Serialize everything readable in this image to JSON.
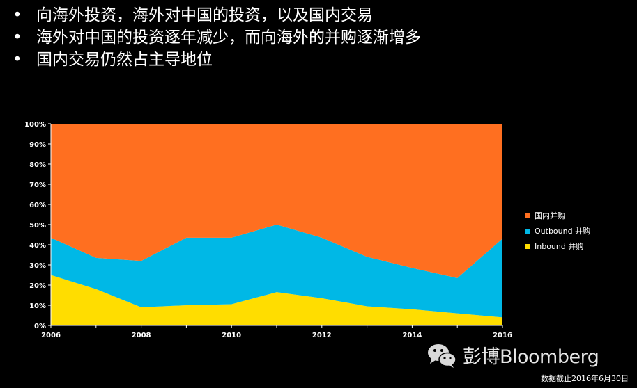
{
  "bullets": [
    "向海外投资，海外对中国的投资，以及国内交易",
    "海外对中国的投资逐年减少，而向海外的并购逐渐增多",
    "国内交易仍然占主导地位"
  ],
  "bullet_symbol": "•",
  "watermark": {
    "text": "彭博Bloomberg",
    "icon": "wechat-icon"
  },
  "footnote": "数据截止2016年6月30日",
  "colors": {
    "inbound": "#ffdd00",
    "outbound": "#00b8e6",
    "domestic": "#ff6f20",
    "plot_bg": "#ffffff"
  },
  "chart_data": {
    "type": "area",
    "stacked": true,
    "percent": true,
    "x": [
      2006,
      2007,
      2008,
      2009,
      2010,
      2011,
      2012,
      2013,
      2014,
      2015,
      2016
    ],
    "x_ticks": [
      "2006",
      "2008",
      "2010",
      "2012",
      "2014",
      "2016"
    ],
    "y_ticks": [
      "0%",
      "10%",
      "20%",
      "30%",
      "40%",
      "50%",
      "60%",
      "70%",
      "80%",
      "90%",
      "100%"
    ],
    "ylim": [
      0,
      100
    ],
    "series": [
      {
        "name": "Inbound 并购",
        "key": "inbound",
        "values": [
          25,
          18,
          9,
          10,
          10.5,
          16.5,
          13.5,
          9.5,
          8,
          6,
          4
        ]
      },
      {
        "name": "Outbound 并购",
        "key": "outbound",
        "values": [
          18.5,
          15.5,
          23,
          33.5,
          33,
          33.5,
          30,
          24.5,
          20.5,
          17.5,
          39
        ]
      },
      {
        "name": "国内并购",
        "key": "domestic",
        "values": [
          56.5,
          66.5,
          68,
          56.5,
          56.5,
          50,
          56.5,
          66,
          71.5,
          76.5,
          57
        ]
      }
    ],
    "legend_order": [
      "domestic",
      "outbound",
      "inbound"
    ],
    "legend_position": "right",
    "grid": false
  }
}
